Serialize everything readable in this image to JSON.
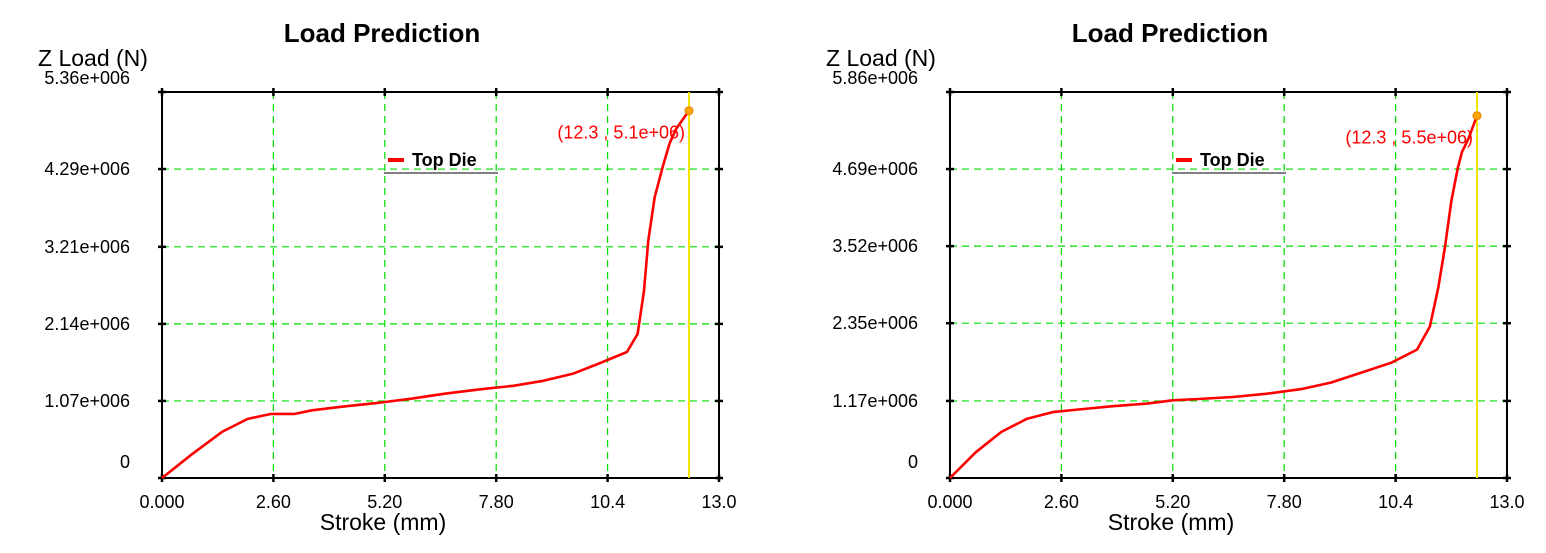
{
  "chart_data": [
    {
      "type": "line",
      "title": "Load Prediction",
      "ylabel": "Z Load (N)",
      "xlabel": "Stroke (mm)",
      "xlim": [
        0,
        13.0
      ],
      "ylim": [
        0,
        5360000
      ],
      "x_ticks": [
        "0.000",
        "2.60",
        "5.20",
        "7.80",
        "10.4",
        "13.0"
      ],
      "x_tick_values": [
        0,
        2.6,
        5.2,
        7.8,
        10.4,
        13.0
      ],
      "y_ticks": [
        "0",
        "1.07e+006",
        "2.14e+006",
        "3.21e+006",
        "4.29e+006",
        "5.36e+006"
      ],
      "y_tick_values": [
        0,
        1070000,
        2140000,
        3210000,
        4290000,
        5360000
      ],
      "grid": true,
      "legend": "top-center",
      "series": [
        {
          "name": "Top Die",
          "color": "#ff0000",
          "x": [
            0,
            0.7,
            1.4,
            2.0,
            2.55,
            3.1,
            3.5,
            4.2,
            5.0,
            5.8,
            6.6,
            7.4,
            8.2,
            8.9,
            9.6,
            10.2,
            10.85,
            11.1,
            11.25,
            11.35,
            11.5,
            11.7,
            11.85,
            12.0,
            12.3
          ],
          "y": [
            0,
            330000,
            640000,
            820000,
            890000,
            890000,
            940000,
            990000,
            1040000,
            1100000,
            1170000,
            1230000,
            1280000,
            1350000,
            1450000,
            1590000,
            1750000,
            2000000,
            2600000,
            3300000,
            3900000,
            4350000,
            4650000,
            4850000,
            5100000
          ]
        }
      ],
      "cursor_x": 12.3,
      "annotation": "(12.3 , 5.1e+06)",
      "annotation_point": [
        12.3,
        5100000
      ]
    },
    {
      "type": "line",
      "title": "Load Prediction",
      "ylabel": "Z Load (N)",
      "xlabel": "Stroke (mm)",
      "xlim": [
        0,
        13.0
      ],
      "ylim": [
        0,
        5860000
      ],
      "x_ticks": [
        "0.000",
        "2.60",
        "5.20",
        "7.80",
        "10.4",
        "13.0"
      ],
      "x_tick_values": [
        0,
        2.6,
        5.2,
        7.8,
        10.4,
        13.0
      ],
      "y_ticks": [
        "0",
        "1.17e+006",
        "2.35e+006",
        "3.52e+006",
        "4.69e+006",
        "5.86e+006"
      ],
      "y_tick_values": [
        0,
        1170000,
        2350000,
        3520000,
        4690000,
        5860000
      ],
      "grid": true,
      "legend": "top-center",
      "series": [
        {
          "name": "Top Die",
          "color": "#ff0000",
          "x": [
            0,
            0.6,
            1.2,
            1.8,
            2.4,
            3.0,
            3.8,
            4.6,
            5.2,
            5.8,
            6.6,
            7.4,
            8.2,
            8.9,
            9.6,
            10.3,
            10.9,
            11.2,
            11.4,
            11.55,
            11.7,
            11.85,
            11.95,
            12.1,
            12.3
          ],
          "y": [
            0,
            390000,
            700000,
            900000,
            1000000,
            1040000,
            1090000,
            1130000,
            1180000,
            1200000,
            1230000,
            1280000,
            1350000,
            1450000,
            1600000,
            1750000,
            1950000,
            2300000,
            2900000,
            3500000,
            4200000,
            4700000,
            4950000,
            5150000,
            5500000
          ]
        }
      ],
      "cursor_x": 12.3,
      "annotation": "(12.3 , 5.5e+06)",
      "annotation_point": [
        12.3,
        5500000
      ]
    }
  ]
}
